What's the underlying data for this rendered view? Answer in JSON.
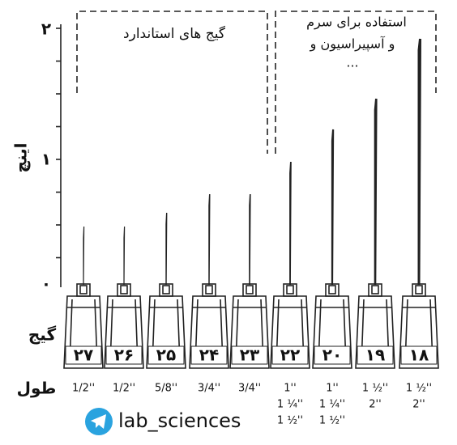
{
  "axis": {
    "title": "اینچ",
    "ticks": [
      "٠",
      "١",
      "٢"
    ]
  },
  "gauge_label": "گیج",
  "length_label": "طول",
  "groups": [
    {
      "label": "گیج های استاندارد"
    },
    {
      "lines": [
        "استفاده برای سرم",
        "و آسپیراسیون و",
        "..."
      ]
    }
  ],
  "needles": [
    {
      "gauge": "۲۷",
      "lengths": [
        "1/2''"
      ]
    },
    {
      "gauge": "۲۶",
      "lengths": [
        "1/2''"
      ]
    },
    {
      "gauge": "۲۵",
      "lengths": [
        "5/8''"
      ]
    },
    {
      "gauge": "۲۴",
      "lengths": [
        "3/4''"
      ]
    },
    {
      "gauge": "۲۳",
      "lengths": [
        "3/4''"
      ]
    },
    {
      "gauge": "۲۲",
      "lengths": [
        "1''",
        "1 ¼''",
        "1 ½''"
      ]
    },
    {
      "gauge": "۲۰",
      "lengths": [
        "1''",
        "1 ¼''",
        "1 ½''"
      ]
    },
    {
      "gauge": "۱۹",
      "lengths": [
        "1 ½''",
        "2''"
      ]
    },
    {
      "gauge": "۱۸",
      "lengths": [
        "1 ½''",
        "2''"
      ]
    }
  ],
  "footer": "lab_sciences"
}
